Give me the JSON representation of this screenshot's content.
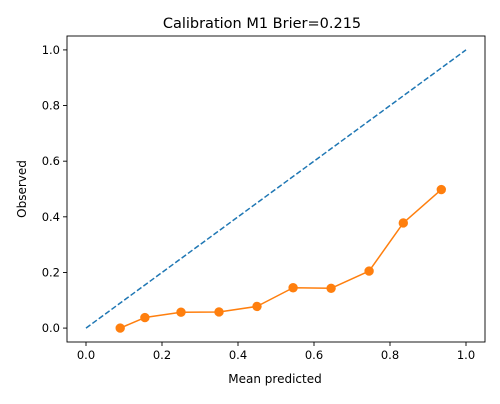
{
  "chart_data": {
    "type": "line",
    "title": "Calibration M1 Brier=0.215",
    "xlabel": "Mean predicted",
    "ylabel": "Observed",
    "xlim": [
      -0.05,
      1.05
    ],
    "ylim": [
      -0.05,
      1.05
    ],
    "x_ticks": [
      0.0,
      0.2,
      0.4,
      0.6,
      0.8,
      1.0
    ],
    "x_tick_labels": [
      "0.0",
      "0.2",
      "0.4",
      "0.6",
      "0.8",
      "1.0"
    ],
    "y_ticks": [
      0.0,
      0.2,
      0.4,
      0.6,
      0.8,
      1.0
    ],
    "y_tick_labels": [
      "0.0",
      "0.2",
      "0.4",
      "0.6",
      "0.8",
      "1.0"
    ],
    "grid": false,
    "legend": false,
    "series": [
      {
        "style": "dashed",
        "color": "#1f77b4",
        "markers": false,
        "x": [
          0.0,
          1.0
        ],
        "y": [
          0.0,
          1.0
        ]
      },
      {
        "style": "solid",
        "color": "#ff7f0e",
        "markers": true,
        "x": [
          0.09,
          0.155,
          0.25,
          0.35,
          0.45,
          0.545,
          0.645,
          0.745,
          0.835,
          0.935
        ],
        "y": [
          0.0,
          0.038,
          0.057,
          0.058,
          0.078,
          0.145,
          0.143,
          0.205,
          0.378,
          0.498
        ]
      }
    ]
  }
}
